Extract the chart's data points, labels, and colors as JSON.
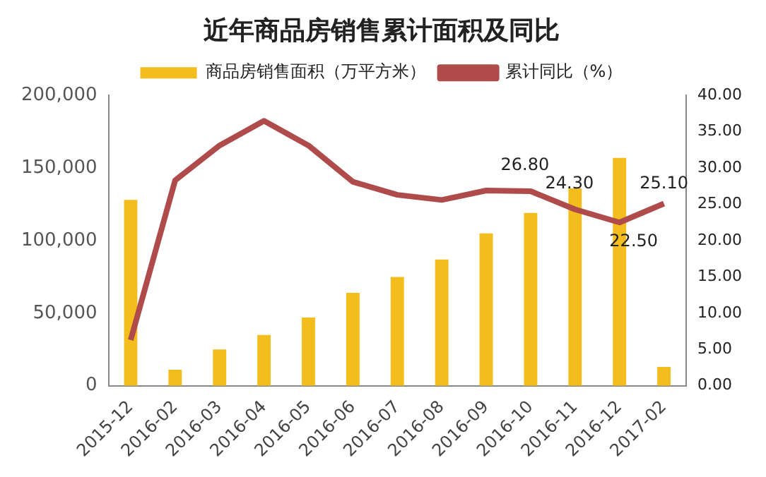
{
  "chart_data": {
    "type": "bar",
    "title": "近年商品房销售累计面积及同比",
    "categories": [
      "2015-12",
      "2016-02",
      "2016-03",
      "2016-04",
      "2016-05",
      "2016-06",
      "2016-07",
      "2016-08",
      "2016-09",
      "2016-10",
      "2016-11",
      "2016-12",
      "2017-02"
    ],
    "series": [
      {
        "name": "商品房销售面积（万平方米）",
        "color": "#f2bd1d",
        "values": [
          128000,
          11000,
          25000,
          35000,
          47000,
          64000,
          75000,
          87000,
          105000,
          119000,
          136000,
          157000,
          13000
        ]
      },
      {
        "name": "累计同比（%）",
        "type": "line",
        "axis": "y2",
        "color": "#b04b4b",
        "values": [
          6.3,
          28.3,
          33.1,
          36.5,
          33.1,
          28.1,
          26.3,
          25.6,
          26.9,
          26.8,
          24.3,
          22.5,
          25.1
        ],
        "value_labels": [
          null,
          null,
          null,
          null,
          null,
          null,
          null,
          null,
          null,
          "26.80",
          "24.30",
          "22.50",
          "25.10"
        ]
      }
    ],
    "ylim": [
      0,
      200000
    ],
    "yticks": [
      {
        "value": 0,
        "label": "0"
      },
      {
        "value": 50000,
        "label": "50,000"
      },
      {
        "value": 100000,
        "label": "100,000"
      },
      {
        "value": 150000,
        "label": "150,000"
      },
      {
        "value": 200000,
        "label": "200,000"
      }
    ],
    "y2lim": [
      0,
      40
    ],
    "y2ticks": [
      {
        "value": 0,
        "label": "0.00"
      },
      {
        "value": 5,
        "label": "5.00"
      },
      {
        "value": 10,
        "label": "10.00"
      },
      {
        "value": 15,
        "label": "15.00"
      },
      {
        "value": 20,
        "label": "20.00"
      },
      {
        "value": 25,
        "label": "25.00"
      },
      {
        "value": 30,
        "label": "30.00"
      },
      {
        "value": 35,
        "label": "35.00"
      },
      {
        "value": 40,
        "label": "40.00"
      }
    ],
    "grid": false,
    "legend": "top"
  }
}
